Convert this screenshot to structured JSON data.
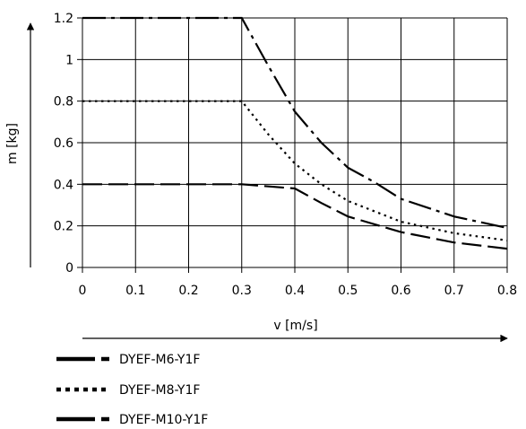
{
  "chart_data": {
    "type": "line",
    "title": "",
    "xlabel": "v [m/s]",
    "ylabel": "m [kg]",
    "xlim": [
      0,
      0.8
    ],
    "ylim": [
      0,
      1.2
    ],
    "grid": true,
    "legend_position": "bottom-left",
    "x_ticks": [
      "0",
      "0.1",
      "0.2",
      "0.3",
      "0.4",
      "0.5",
      "0.6",
      "0.7",
      "0.8"
    ],
    "y_ticks": [
      "0",
      "0.2",
      "0.4",
      "0.6",
      "0.8",
      "1",
      "1.2"
    ],
    "series": [
      {
        "name": "DYEF-M6-Y1F",
        "line_style": "dash-dot",
        "color": "#000000",
        "points": [
          [
            0,
            1.2
          ],
          [
            0.3,
            1.2
          ],
          [
            0.35,
            0.97
          ],
          [
            0.4,
            0.75
          ],
          [
            0.45,
            0.6
          ],
          [
            0.5,
            0.48
          ],
          [
            0.55,
            0.41
          ],
          [
            0.6,
            0.33
          ],
          [
            0.7,
            0.245
          ],
          [
            0.8,
            0.19
          ]
        ]
      },
      {
        "name": "DYEF-M8-Y1F",
        "line_style": "dotted",
        "color": "#000000",
        "points": [
          [
            0,
            0.8
          ],
          [
            0.3,
            0.8
          ],
          [
            0.35,
            0.64
          ],
          [
            0.4,
            0.5
          ],
          [
            0.45,
            0.4
          ],
          [
            0.5,
            0.32
          ],
          [
            0.6,
            0.22
          ],
          [
            0.7,
            0.165
          ],
          [
            0.8,
            0.13
          ]
        ]
      },
      {
        "name": "DYEF-M10-Y1F",
        "line_style": "dashed",
        "color": "#000000",
        "points": [
          [
            0,
            0.4
          ],
          [
            0.3,
            0.4
          ],
          [
            0.4,
            0.38
          ],
          [
            0.45,
            0.31
          ],
          [
            0.5,
            0.245
          ],
          [
            0.6,
            0.17
          ],
          [
            0.7,
            0.12
          ],
          [
            0.8,
            0.09
          ]
        ]
      }
    ]
  }
}
